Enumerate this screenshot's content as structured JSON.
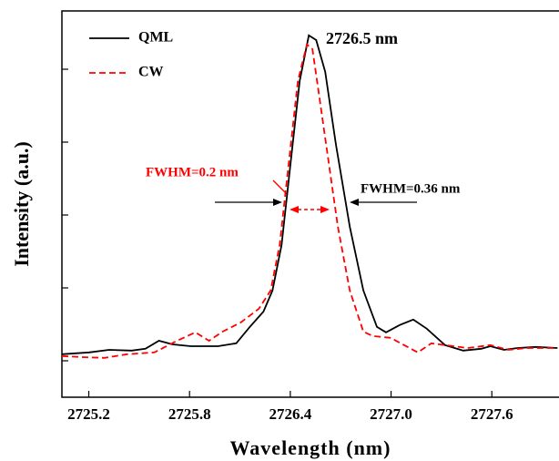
{
  "chart_data": {
    "type": "line",
    "x_label": "Wavelength (nm)",
    "y_label": "Intensity (a.u.)",
    "xlim": [
      2725.04,
      2728.0
    ],
    "ylim": [
      -0.1,
      0.96
    ],
    "xticks": [
      2725.2,
      2725.8,
      2726.4,
      {
        "value": 2727,
        "label": "2727.0"
      },
      2727.6
    ],
    "yticks": [
      0,
      0.2,
      0.4,
      0.6,
      0.8
    ],
    "annotations": [
      "2726.5 nm",
      "FWHM=0.2 nm",
      "FWHM=0.36 nm"
    ],
    "series": [
      {
        "name": "QML",
        "color": "#000000",
        "dash": "solid",
        "x": [
          2725.04,
          2725.202,
          2725.321,
          2725.456,
          2725.537,
          2725.618,
          2725.699,
          2725.808,
          2725.97,
          2726.078,
          2726.159,
          2726.24,
          2726.294,
          2726.348,
          2726.402,
          2726.456,
          2726.51,
          2726.554,
          2726.608,
          2726.672,
          2726.754,
          2726.835,
          2726.916,
          2726.97,
          2727.051,
          2727.132,
          2727.213,
          2727.321,
          2727.429,
          2727.537,
          2727.591,
          2727.672,
          2727.754,
          2727.862,
          2727.991
        ],
        "values": [
          0.018,
          0.023,
          0.03,
          0.028,
          0.033,
          0.055,
          0.045,
          0.04,
          0.04,
          0.048,
          0.093,
          0.135,
          0.193,
          0.318,
          0.543,
          0.768,
          0.893,
          0.88,
          0.793,
          0.593,
          0.368,
          0.193,
          0.093,
          0.078,
          0.098,
          0.113,
          0.088,
          0.043,
          0.028,
          0.033,
          0.04,
          0.03,
          0.035,
          0.038,
          0.035
        ]
      },
      {
        "name": "CW",
        "color": "#ff0000",
        "dash": "dashed",
        "x": [
          2725.04,
          2725.159,
          2725.294,
          2725.429,
          2725.591,
          2725.726,
          2725.835,
          2725.916,
          2725.997,
          2726.105,
          2726.213,
          2726.283,
          2726.337,
          2726.391,
          2726.445,
          2726.499,
          2726.532,
          2726.575,
          2726.629,
          2726.683,
          2726.754,
          2726.835,
          2726.889,
          2726.997,
          2727.078,
          2727.159,
          2727.24,
          2727.321,
          2727.456,
          2727.591,
          2727.699,
          2727.808,
          2727.991
        ],
        "values": [
          0.013,
          0.01,
          0.008,
          0.018,
          0.023,
          0.055,
          0.078,
          0.055,
          0.08,
          0.105,
          0.143,
          0.193,
          0.318,
          0.543,
          0.768,
          0.868,
          0.855,
          0.718,
          0.543,
          0.368,
          0.193,
          0.08,
          0.068,
          0.063,
          0.043,
          0.023,
          0.048,
          0.043,
          0.035,
          0.043,
          0.03,
          0.035,
          0.035
        ]
      }
    ]
  }
}
